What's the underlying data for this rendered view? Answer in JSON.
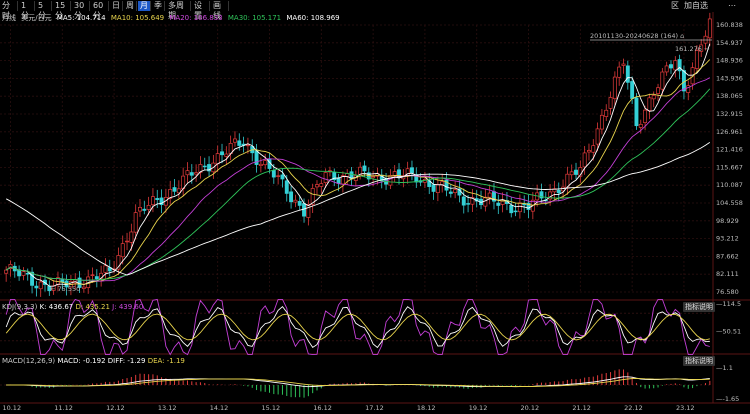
{
  "toolbar": {
    "periods": [
      "分时",
      "1分",
      "5分",
      "15分",
      "30分",
      "60分",
      "日",
      "周",
      "月",
      "季",
      "多周期",
      "设置",
      "画线"
    ],
    "active_period_index": 8,
    "right": [
      "区",
      "加自选",
      "⋯"
    ]
  },
  "legend": {
    "period_label": "月线",
    "name": "美元/日元",
    "ma5_label": "MA5: 104.714",
    "ma10_label": "MA10: 105.649",
    "ma20_label": "MA20: 106.833",
    "ma30_label": "MA30: 105.171",
    "ma60_label": "MA60: 108.969"
  },
  "colors": {
    "up": "#e23b3b",
    "down": "#34d0d6",
    "ma5": "#ffffff",
    "ma10": "#e8d44d",
    "ma20": "#c33fd6",
    "ma30": "#2fc45a",
    "ma60": "#ffffff",
    "grid": "#2a0f0f",
    "kdj_k": "#ffffff",
    "kdj_d": "#e8d44d",
    "kdj_j": "#c33fd6",
    "macd_diff": "#ffffff",
    "macd_dea": "#e8d44d"
  },
  "range_label": "20101130-20240628 (164)",
  "range_icon": "camera-icon",
  "high_marker": "161.276",
  "low_marker": "75.550",
  "price_axis": [
    "160.838",
    "154.937",
    "148.936",
    "143.936",
    "138.065",
    "132.915",
    "126.961",
    "121.416",
    "115.667",
    "110.087",
    "104.558",
    "98.929",
    "93.212",
    "87.662",
    "82.111",
    "76.580"
  ],
  "date_axis": [
    "10.12",
    "11.12",
    "12.12",
    "13.12",
    "14.12",
    "15.12",
    "16.12",
    "17.12",
    "18.12",
    "19.12",
    "20.12",
    "21.12",
    "22.12",
    "23.12"
  ],
  "kdj": {
    "label": "KDJ(9,3,3)",
    "k_label": "K: 436.67",
    "d_label": "D: 435.21",
    "j_label": "J: 439.60",
    "button": "指标说明",
    "axis": [
      "114.5",
      "50.51"
    ]
  },
  "macd": {
    "label": "MACD(12,26,9)",
    "macd_label": "MACD: -0.192",
    "diff_label": "DIFF: -1.29",
    "dea_label": "DEA: -1.19",
    "button": "指标说明",
    "axis": [
      "1.1",
      "-1.65"
    ]
  },
  "chart_data": {
    "type": "candlestick",
    "instrument": "美元/日元",
    "period": "月线",
    "date_range": [
      "2010-11",
      "2024-06"
    ],
    "count": 164,
    "ylim": [
      76.58,
      160.838
    ],
    "high": 161.276,
    "low": 75.55,
    "anchors": [
      {
        "date": "2010-11",
        "close": 83.5
      },
      {
        "date": "2011-10",
        "close": 78.0
      },
      {
        "date": "2012-11",
        "close": 82.5
      },
      {
        "date": "2013-05",
        "close": 100.5
      },
      {
        "date": "2014-11",
        "close": 118.5
      },
      {
        "date": "2015-06",
        "close": 124.0
      },
      {
        "date": "2016-08",
        "close": 102.5
      },
      {
        "date": "2017-01",
        "close": 113.5
      },
      {
        "date": "2018-10",
        "close": 113.0
      },
      {
        "date": "2019-08",
        "close": 106.5
      },
      {
        "date": "2020-12",
        "close": 103.3
      },
      {
        "date": "2021-12",
        "close": 115.0
      },
      {
        "date": "2022-10",
        "close": 149.0
      },
      {
        "date": "2023-01",
        "close": 130.0
      },
      {
        "date": "2023-10",
        "close": 150.5
      },
      {
        "date": "2023-12",
        "close": 141.0
      },
      {
        "date": "2024-06",
        "close": 160.8
      }
    ]
  }
}
